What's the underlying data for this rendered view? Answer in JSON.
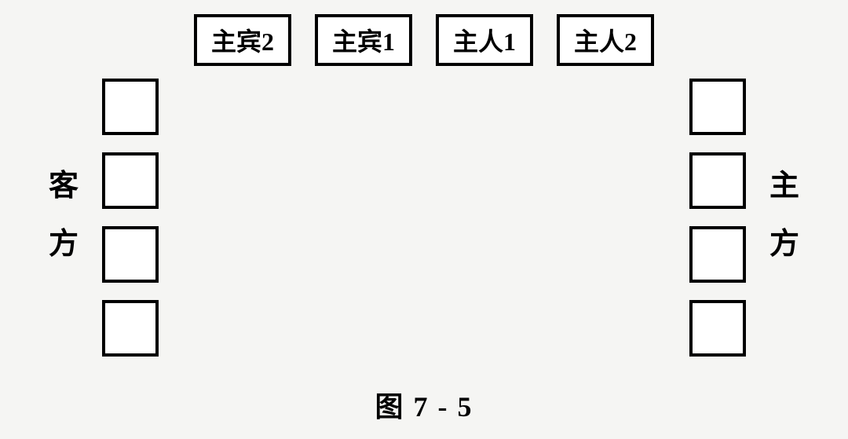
{
  "diagram": {
    "type": "seating-layout",
    "background_color": "#f5f5f3",
    "box_border_color": "#000000",
    "box_background_color": "#ffffff",
    "box_border_width": 4,
    "top_boxes": [
      {
        "label": "主宾2"
      },
      {
        "label": "主宾1"
      },
      {
        "label": "主人1"
      },
      {
        "label": "主人2"
      }
    ],
    "top_box_fontsize": 32,
    "top_box_gap": 30,
    "left_side": {
      "label_chars": [
        "客",
        "方"
      ],
      "empty_box_count": 4
    },
    "right_side": {
      "label_chars": [
        "主",
        "方"
      ],
      "empty_box_count": 4
    },
    "side_box_size": 72,
    "side_box_gap": 22,
    "side_label_fontsize": 38,
    "caption": "图 7 - 5",
    "caption_fontsize": 36
  }
}
